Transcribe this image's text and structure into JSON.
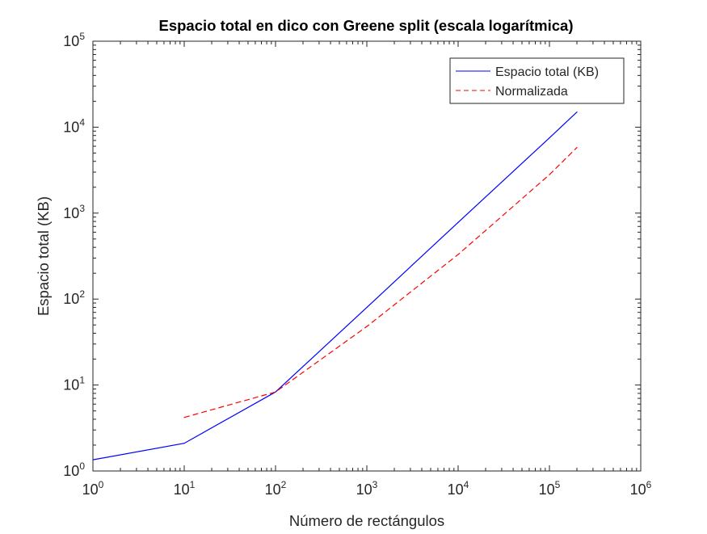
{
  "chart_data": {
    "type": "line",
    "title": "Espacio total en dico con Greene split (escala logarítmica)",
    "xlabel": "Número de rectángulos",
    "ylabel": "Espacio total (KB)",
    "xscale": "log",
    "yscale": "log",
    "xlim": [
      1,
      1000000
    ],
    "ylim": [
      1,
      100000
    ],
    "x_ticks": [
      {
        "base": "10",
        "exp": "0"
      },
      {
        "base": "10",
        "exp": "1"
      },
      {
        "base": "10",
        "exp": "2"
      },
      {
        "base": "10",
        "exp": "3"
      },
      {
        "base": "10",
        "exp": "4"
      },
      {
        "base": "10",
        "exp": "5"
      },
      {
        "base": "10",
        "exp": "6"
      }
    ],
    "y_ticks": [
      {
        "base": "10",
        "exp": "0"
      },
      {
        "base": "10",
        "exp": "1"
      },
      {
        "base": "10",
        "exp": "2"
      },
      {
        "base": "10",
        "exp": "3"
      },
      {
        "base": "10",
        "exp": "4"
      },
      {
        "base": "10",
        "exp": "5"
      }
    ],
    "grid": false,
    "legend_position": "top-right",
    "series": [
      {
        "name": "Espacio total (KB)",
        "color": "#0000ff",
        "line_style": "solid",
        "x": [
          1,
          10,
          100,
          1000,
          10000,
          100000,
          200000
        ],
        "y": [
          1.35,
          2.1,
          8.3,
          80,
          780,
          7500,
          15000
        ]
      },
      {
        "name": "Normalizada",
        "color": "#ff0000",
        "line_style": "dashed",
        "x": [
          10,
          100,
          1000,
          10000,
          100000,
          200000
        ],
        "y": [
          4.2,
          8.3,
          48,
          330,
          2800,
          5800
        ]
      }
    ]
  }
}
